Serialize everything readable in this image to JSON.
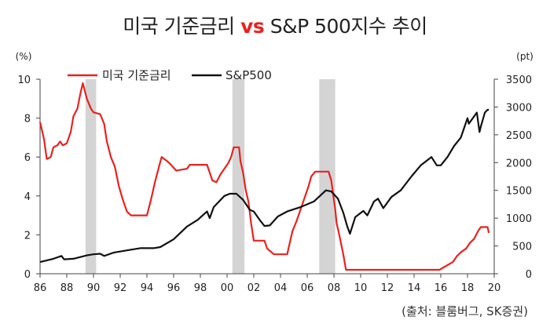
{
  "title": {
    "left": "미국 기준금리 ",
    "vs": "vs",
    "right": " S&P 500지수 추이"
  },
  "source": "(출처: 블룸버그, SK증권)",
  "colors": {
    "rate": "#e8221f",
    "sp500": "#111111",
    "recession": "#d4d4d4",
    "accent": "#e8221f"
  },
  "chart_data": {
    "type": "line",
    "title": "미국 기준금리 vs S&P 500지수 추이",
    "legend": {
      "placement": "top-left",
      "entries": [
        "미국 기준금리",
        "S&P500"
      ]
    },
    "x_ticks": [
      "86",
      "88",
      "90",
      "92",
      "94",
      "96",
      "98",
      "00",
      "02",
      "04",
      "06",
      "08",
      "10",
      "12",
      "14",
      "16",
      "18",
      "20"
    ],
    "xlim": [
      1986,
      2020
    ],
    "y_left": {
      "unit": "(%)",
      "ylim": [
        0,
        10
      ],
      "ticks": [
        "0",
        "2",
        "4",
        "6",
        "8",
        "10"
      ]
    },
    "y_right": {
      "unit": "(pt)",
      "ylim": [
        0,
        3500
      ],
      "ticks": [
        "0",
        "500",
        "1000",
        "1500",
        "2000",
        "2500",
        "3000",
        "3500"
      ]
    },
    "recessions": [
      [
        1989.4,
        1990.2
      ],
      [
        2000.4,
        2001.3
      ],
      [
        2006.9,
        2008.1
      ]
    ],
    "series": [
      {
        "name": "미국 기준금리",
        "axis": "left",
        "x": [
          1986.0,
          1986.3,
          1986.5,
          1986.8,
          1987.0,
          1987.3,
          1987.5,
          1987.7,
          1988.0,
          1988.3,
          1988.5,
          1988.8,
          1989.0,
          1989.2,
          1989.5,
          1989.8,
          1990.0,
          1990.5,
          1990.8,
          1991.0,
          1991.3,
          1991.6,
          1991.9,
          1992.2,
          1992.5,
          1992.8,
          1993.0,
          1994.0,
          1994.3,
          1994.6,
          1994.9,
          1995.1,
          1995.5,
          1995.8,
          1996.2,
          1997.0,
          1997.2,
          1998.5,
          1998.7,
          1998.9,
          1999.2,
          1999.5,
          1999.8,
          2000.1,
          2000.3,
          2000.5,
          2000.9,
          2001.0,
          2001.2,
          2001.4,
          2001.6,
          2001.8,
          2002.0,
          2002.8,
          2003.0,
          2003.5,
          2004.5,
          2004.7,
          2004.9,
          2005.2,
          2005.5,
          2005.8,
          2006.1,
          2006.3,
          2006.6,
          2007.6,
          2007.8,
          2007.9,
          2008.1,
          2008.2,
          2008.4,
          2008.7,
          2008.9,
          2015.9,
          2016.9,
          2017.2,
          2017.5,
          2017.9,
          2018.2,
          2018.5,
          2018.8,
          2019.0,
          2019.5,
          2019.6
        ],
        "values": [
          7.8,
          6.9,
          5.9,
          6.0,
          6.5,
          6.6,
          6.8,
          6.6,
          6.7,
          7.3,
          8.1,
          8.5,
          9.2,
          9.8,
          9.0,
          8.5,
          8.3,
          8.2,
          7.7,
          6.8,
          6.0,
          5.5,
          4.5,
          3.8,
          3.2,
          3.0,
          3.0,
          3.0,
          3.8,
          4.7,
          5.5,
          6.0,
          5.8,
          5.6,
          5.3,
          5.4,
          5.6,
          5.6,
          5.2,
          4.8,
          4.7,
          5.1,
          5.4,
          5.7,
          6.0,
          6.5,
          6.5,
          5.8,
          5.2,
          4.3,
          3.7,
          2.6,
          1.7,
          1.7,
          1.3,
          1.0,
          1.0,
          1.6,
          2.2,
          2.7,
          3.3,
          3.9,
          4.5,
          5.0,
          5.25,
          5.25,
          4.8,
          4.3,
          3.3,
          2.6,
          2.0,
          1.0,
          0.2,
          0.2,
          0.6,
          0.9,
          1.1,
          1.3,
          1.6,
          1.8,
          2.2,
          2.4,
          2.4,
          2.1
        ]
      },
      {
        "name": "S&P500",
        "axis": "right",
        "x": [
          1986.0,
          1987.0,
          1987.6,
          1987.8,
          1988.5,
          1989.5,
          1990.0,
          1990.5,
          1990.8,
          1991.5,
          1992.5,
          1993.5,
          1994.5,
          1995.0,
          1996.0,
          1997.0,
          1997.8,
          1998.5,
          1998.7,
          1999.0,
          1999.8,
          2000.2,
          2000.7,
          2001.2,
          2001.7,
          2002.0,
          2002.5,
          2002.8,
          2003.2,
          2003.8,
          2004.5,
          2005.5,
          2006.5,
          2007.4,
          2007.8,
          2008.3,
          2008.7,
          2009.0,
          2009.2,
          2009.6,
          2010.2,
          2010.5,
          2011.0,
          2011.3,
          2011.7,
          2012.3,
          2013.0,
          2013.8,
          2014.5,
          2015.3,
          2015.7,
          2016.0,
          2016.5,
          2017.0,
          2017.5,
          2018.0,
          2018.1,
          2018.7,
          2018.9,
          2019.0,
          2019.3,
          2019.5,
          2019.6
        ],
        "values": [
          210,
          270,
          320,
          260,
          270,
          330,
          350,
          360,
          320,
          380,
          420,
          460,
          460,
          480,
          620,
          850,
          970,
          1120,
          1000,
          1200,
          1400,
          1440,
          1440,
          1330,
          1150,
          1120,
          950,
          860,
          870,
          1030,
          1120,
          1200,
          1300,
          1500,
          1480,
          1350,
          1100,
          850,
          720,
          1020,
          1130,
          1050,
          1300,
          1350,
          1180,
          1380,
          1500,
          1750,
          1950,
          2100,
          1950,
          1950,
          2100,
          2300,
          2450,
          2800,
          2700,
          2900,
          2550,
          2650,
          2900,
          2950,
          2950
        ]
      }
    ]
  }
}
